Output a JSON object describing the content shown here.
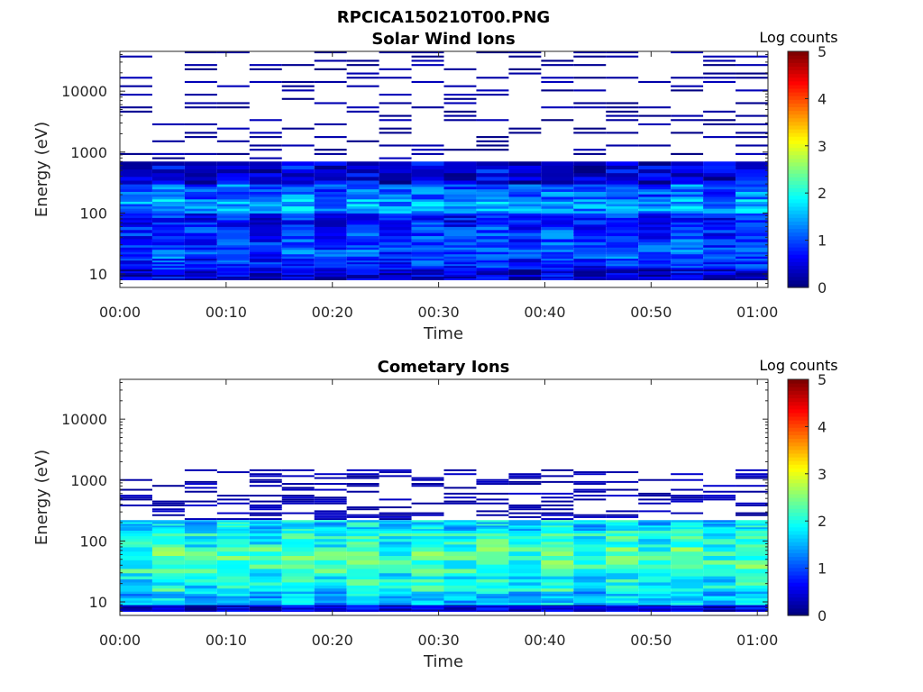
{
  "figure": {
    "title": "RPCICA150210T00.PNG"
  },
  "colors": {
    "white": "#ffffff",
    "axis": "#262626"
  },
  "chart_data": [
    {
      "type": "heatmap",
      "title": "Solar Wind Ions",
      "xlabel": "Time",
      "ylabel": "Energy (eV)",
      "yscale": "log",
      "ylim": [
        6,
        45000
      ],
      "xlim": [
        "00:00",
        "01:01"
      ],
      "x_ticks": [
        "00:00",
        "00:10",
        "00:20",
        "00:30",
        "00:40",
        "00:50",
        "01:00"
      ],
      "y_ticks": [
        "10",
        "100",
        "1000",
        "10000"
      ],
      "colorbar": {
        "label": "Log counts",
        "range": [
          0,
          5
        ],
        "ticks": [
          "0",
          "1",
          "2",
          "3",
          "4",
          "5"
        ],
        "colormap": "jet"
      },
      "time_bin_minutes": 3.05,
      "num_time_bins": 20,
      "bands": [
        {
          "e_min": 8,
          "e_max": 12,
          "level": 0.3
        },
        {
          "e_min": 12,
          "e_max": 18,
          "level": 0.7
        },
        {
          "e_min": 18,
          "e_max": 30,
          "level": 0.9
        },
        {
          "e_min": 30,
          "e_max": 60,
          "level": 0.8
        },
        {
          "e_min": 60,
          "e_max": 100,
          "level": 0.6
        },
        {
          "e_min": 100,
          "e_max": 170,
          "level": 1.3
        },
        {
          "e_min": 170,
          "e_max": 300,
          "level": 1.0
        },
        {
          "e_min": 300,
          "e_max": 700,
          "level": 0.4
        },
        {
          "e_min": 700,
          "e_max": 45000,
          "level": 0.15,
          "sparse": true
        }
      ]
    },
    {
      "type": "heatmap",
      "title": "Cometary Ions",
      "xlabel": "Time",
      "ylabel": "Energy (eV)",
      "yscale": "log",
      "ylim": [
        6,
        45000
      ],
      "xlim": [
        "00:00",
        "01:01"
      ],
      "x_ticks": [
        "00:00",
        "00:10",
        "00:20",
        "00:30",
        "00:40",
        "00:50",
        "01:00"
      ],
      "y_ticks": [
        "10",
        "100",
        "1000",
        "10000"
      ],
      "colorbar": {
        "label": "Log counts",
        "range": [
          0,
          5
        ],
        "ticks": [
          "0",
          "1",
          "2",
          "3",
          "4",
          "5"
        ],
        "colormap": "jet"
      },
      "time_bin_minutes": 3.05,
      "num_time_bins": 20,
      "bands": [
        {
          "e_min": 7,
          "e_max": 9,
          "level": 0.3
        },
        {
          "e_min": 9,
          "e_max": 15,
          "level": 1.5
        },
        {
          "e_min": 15,
          "e_max": 30,
          "level": 1.8
        },
        {
          "e_min": 30,
          "e_max": 80,
          "level": 2.1
        },
        {
          "e_min": 80,
          "e_max": 150,
          "level": 1.9
        },
        {
          "e_min": 150,
          "e_max": 220,
          "level": 1.6
        },
        {
          "e_min": 220,
          "e_max": 1500,
          "level": 0.25,
          "sparse": true
        }
      ]
    }
  ]
}
